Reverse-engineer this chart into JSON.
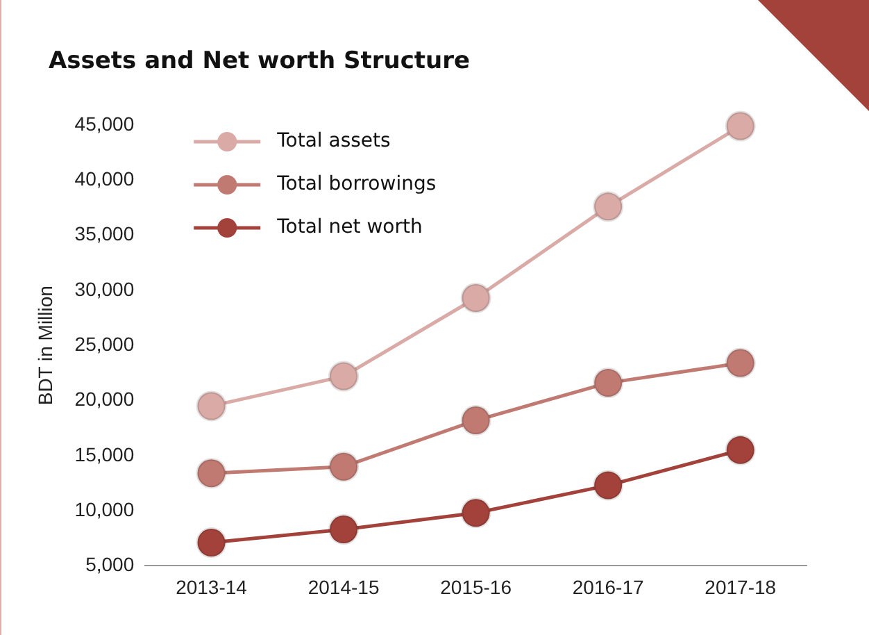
{
  "chart_data": {
    "type": "line",
    "title": "Assets and Net worth Structure",
    "ylabel": "BDT in Million",
    "categories": [
      "2013-14",
      "2014-15",
      "2015-16",
      "2016-17",
      "2017-18"
    ],
    "series": [
      {
        "name": "Total assets",
        "color": "#d9aaa6",
        "values": [
          19500,
          22200,
          29300,
          37600,
          44900
        ]
      },
      {
        "name": "Total borrowings",
        "color": "#c07a72",
        "values": [
          13400,
          14000,
          18200,
          21600,
          23400
        ]
      },
      {
        "name": "Total net worth",
        "color": "#a3423b",
        "values": [
          7100,
          8300,
          9800,
          12300,
          15500
        ]
      }
    ],
    "ylim": [
      5000,
      45000
    ],
    "yticks": [
      {
        "value": 5000,
        "label": "5,000"
      },
      {
        "value": 10000,
        "label": "10,000"
      },
      {
        "value": 15000,
        "label": "15,000"
      },
      {
        "value": 20000,
        "label": "20,000"
      },
      {
        "value": 25000,
        "label": "25,000"
      },
      {
        "value": 30000,
        "label": "30,000"
      },
      {
        "value": 35000,
        "label": "35,000"
      },
      {
        "value": 40000,
        "label": "40,000"
      },
      {
        "value": 45000,
        "label": "45,000"
      }
    ],
    "grid": false,
    "legend": "top left",
    "marker": "circle",
    "line_style": "solid"
  }
}
